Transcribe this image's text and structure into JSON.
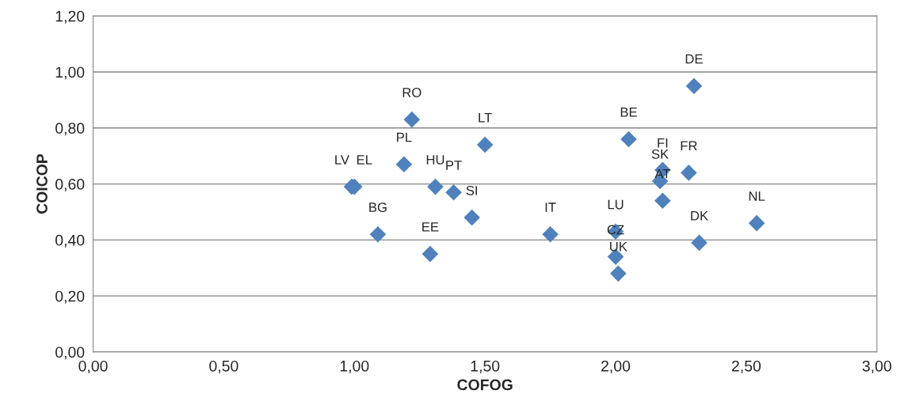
{
  "chart_data": {
    "type": "scatter",
    "xlabel": "COFOG",
    "ylabel": "COICOP",
    "marker": "diamond",
    "grid": "y",
    "legend": false,
    "series": [
      {
        "color": "#4f81bd",
        "x": [
          2.3,
          1.22,
          1.5,
          2.05,
          1.19,
          2.18,
          2.28,
          2.17,
          2.18,
          1.31,
          1.38,
          0.99,
          1.0,
          1.45,
          1.09,
          1.75,
          1.29,
          2.0,
          2.0,
          2.01,
          2.32,
          2.54
        ],
        "values": [
          0.95,
          0.83,
          0.74,
          0.76,
          0.67,
          0.65,
          0.64,
          0.61,
          0.54,
          0.59,
          0.57,
          0.59,
          0.59,
          0.48,
          0.42,
          0.42,
          0.35,
          0.43,
          0.34,
          0.28,
          0.39,
          0.46
        ],
        "value_labels": [
          "DE",
          "RO",
          "LT",
          "BE",
          "PL",
          "FI",
          "FR",
          "SK",
          "AT",
          "HU",
          "PT",
          "LV",
          "EL",
          "SI",
          "BG",
          "IT",
          "EE",
          "LU",
          "CZ",
          "UK",
          "DK",
          "NL"
        ]
      }
    ],
    "xlim": [
      0,
      3
    ],
    "ylim": [
      0,
      1.2
    ],
    "xticks": [
      {
        "value": 0,
        "label": "0,00"
      },
      {
        "value": 0.5,
        "label": "0,50"
      },
      {
        "value": 1,
        "label": "1,00"
      },
      {
        "value": 1.5,
        "label": "1,50"
      },
      {
        "value": 2,
        "label": "2,00"
      },
      {
        "value": 2.5,
        "label": "2,50"
      },
      {
        "value": 3,
        "label": "3,00"
      }
    ],
    "yticks": [
      {
        "value": 0,
        "label": "0,00"
      },
      {
        "value": 0.2,
        "label": "0,20"
      },
      {
        "value": 0.4,
        "label": "0,40"
      },
      {
        "value": 0.6,
        "label": "0,60"
      },
      {
        "value": 0.8,
        "label": "0,80"
      },
      {
        "value": 1.0,
        "label": "1,00"
      },
      {
        "value": 1.2,
        "label": "1,20"
      }
    ]
  }
}
